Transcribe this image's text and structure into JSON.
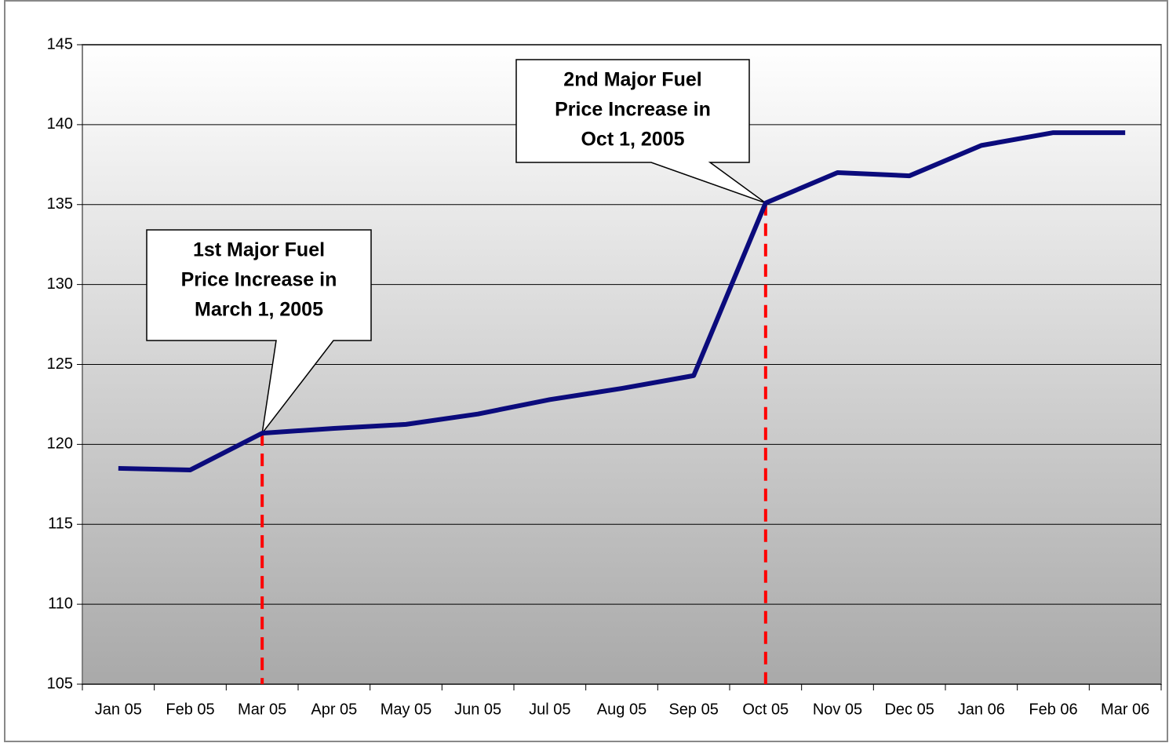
{
  "chart_data": {
    "type": "line",
    "categories": [
      "Jan 05",
      "Feb 05",
      "Mar 05",
      "Apr 05",
      "May 05",
      "Jun 05",
      "Jul 05",
      "Aug 05",
      "Sep 05",
      "Oct 05",
      "Nov 05",
      "Dec 05",
      "Jan 06",
      "Feb 06",
      "Mar 06"
    ],
    "series": [
      {
        "color": "#0b0b7c",
        "values": [
          118.5,
          118.4,
          120.7,
          121.0,
          121.25,
          121.9,
          122.8,
          123.5,
          124.3,
          135.1,
          137.0,
          136.8,
          138.7,
          139.5,
          139.5
        ]
      }
    ],
    "ylim": [
      105,
      145
    ],
    "yticks": [
      105,
      110,
      115,
      120,
      125,
      130,
      135,
      140,
      145
    ],
    "grid": true,
    "annotations": [
      {
        "lines": [
          "1st Major Fuel",
          "Price Increase in",
          "March 1, 2005"
        ]
      },
      {
        "lines": [
          "2nd Major Fuel",
          "Price Increase in",
          "Oct 1, 2005"
        ]
      }
    ]
  }
}
